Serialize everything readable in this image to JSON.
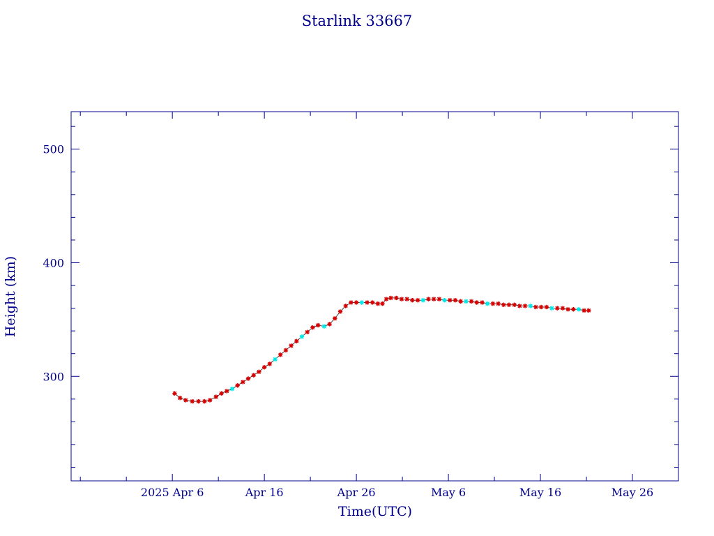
{
  "chart_data": {
    "type": "line",
    "title": "Starlink 33667",
    "xlabel": "Time(UTC)",
    "ylabel": "Height (km)",
    "xlim": [
      "2025-03-26",
      "2025-05-31"
    ],
    "ylim": [
      208,
      533
    ],
    "grid": false,
    "colors": {
      "axis": "#00008b",
      "line": "#444444",
      "marker": "#d40000",
      "marker_alt": "#00e5e5"
    },
    "x_ticks": [
      {
        "date": "2025-04-06",
        "label": "2025 Apr  6"
      },
      {
        "date": "2025-04-16",
        "label": "Apr 16"
      },
      {
        "date": "2025-04-26",
        "label": "Apr 26"
      },
      {
        "date": "2025-05-06",
        "label": "May  6"
      },
      {
        "date": "2025-05-16",
        "label": "May 16"
      },
      {
        "date": "2025-05-26",
        "label": "May 26"
      }
    ],
    "y_ticks": [
      300,
      400,
      500
    ],
    "series": [
      {
        "points": [
          {
            "date": "2025-04-06 06:00",
            "value": 285,
            "m": "r"
          },
          {
            "date": "2025-04-06 20:00",
            "value": 281,
            "m": "r"
          },
          {
            "date": "2025-04-07 11:00",
            "value": 279,
            "m": "r"
          },
          {
            "date": "2025-04-08 04:00",
            "value": 278,
            "m": "r"
          },
          {
            "date": "2025-04-08 20:00",
            "value": 278,
            "m": "r"
          },
          {
            "date": "2025-04-09 12:00",
            "value": 278,
            "m": "r"
          },
          {
            "date": "2025-04-10 02:00",
            "value": 279,
            "m": "r"
          },
          {
            "date": "2025-04-10 18:00",
            "value": 282,
            "m": "r"
          },
          {
            "date": "2025-04-11 08:00",
            "value": 285,
            "m": "r"
          },
          {
            "date": "2025-04-11 22:00",
            "value": 287,
            "m": "r"
          },
          {
            "date": "2025-04-12 12:00",
            "value": 289,
            "m": "c"
          },
          {
            "date": "2025-04-13 02:00",
            "value": 292,
            "m": "r"
          },
          {
            "date": "2025-04-13 16:00",
            "value": 295,
            "m": "r"
          },
          {
            "date": "2025-04-14 06:00",
            "value": 298,
            "m": "r"
          },
          {
            "date": "2025-04-14 20:00",
            "value": 301,
            "m": "r"
          },
          {
            "date": "2025-04-15 10:00",
            "value": 304,
            "m": "r"
          },
          {
            "date": "2025-04-16 00:00",
            "value": 308,
            "m": "r"
          },
          {
            "date": "2025-04-16 14:00",
            "value": 311,
            "m": "r"
          },
          {
            "date": "2025-04-17 04:00",
            "value": 315,
            "m": "c"
          },
          {
            "date": "2025-04-17 18:00",
            "value": 319,
            "m": "r"
          },
          {
            "date": "2025-04-18 08:00",
            "value": 323,
            "m": "r"
          },
          {
            "date": "2025-04-18 22:00",
            "value": 327,
            "m": "r"
          },
          {
            "date": "2025-04-19 12:00",
            "value": 331,
            "m": "r"
          },
          {
            "date": "2025-04-20 02:00",
            "value": 335,
            "m": "c"
          },
          {
            "date": "2025-04-20 16:00",
            "value": 339,
            "m": "r"
          },
          {
            "date": "2025-04-21 06:00",
            "value": 343,
            "m": "r"
          },
          {
            "date": "2025-04-21 20:00",
            "value": 345,
            "m": "r"
          },
          {
            "date": "2025-04-22 12:00",
            "value": 344,
            "m": "c"
          },
          {
            "date": "2025-04-23 02:00",
            "value": 346,
            "m": "r"
          },
          {
            "date": "2025-04-23 16:00",
            "value": 351,
            "m": "r"
          },
          {
            "date": "2025-04-24 06:00",
            "value": 357,
            "m": "r"
          },
          {
            "date": "2025-04-24 20:00",
            "value": 362,
            "m": "r"
          },
          {
            "date": "2025-04-25 10:00",
            "value": 365,
            "m": "r"
          },
          {
            "date": "2025-04-26 00:00",
            "value": 365,
            "m": "r"
          },
          {
            "date": "2025-04-26 14:00",
            "value": 365,
            "m": "c"
          },
          {
            "date": "2025-04-27 04:00",
            "value": 365,
            "m": "r"
          },
          {
            "date": "2025-04-27 18:00",
            "value": 365,
            "m": "r"
          },
          {
            "date": "2025-04-28 08:00",
            "value": 364,
            "m": "r"
          },
          {
            "date": "2025-04-28 20:00",
            "value": 364,
            "m": "r"
          },
          {
            "date": "2025-04-29 06:00",
            "value": 368,
            "m": "r"
          },
          {
            "date": "2025-04-29 18:00",
            "value": 369,
            "m": "r"
          },
          {
            "date": "2025-04-30 08:00",
            "value": 369,
            "m": "r"
          },
          {
            "date": "2025-04-30 22:00",
            "value": 368,
            "m": "r"
          },
          {
            "date": "2025-05-01 12:00",
            "value": 368,
            "m": "r"
          },
          {
            "date": "2025-05-02 02:00",
            "value": 367,
            "m": "r"
          },
          {
            "date": "2025-05-02 16:00",
            "value": 367,
            "m": "r"
          },
          {
            "date": "2025-05-03 06:00",
            "value": 367,
            "m": "c"
          },
          {
            "date": "2025-05-03 20:00",
            "value": 368,
            "m": "r"
          },
          {
            "date": "2025-05-04 10:00",
            "value": 368,
            "m": "r"
          },
          {
            "date": "2025-05-05 00:00",
            "value": 368,
            "m": "r"
          },
          {
            "date": "2025-05-05 14:00",
            "value": 367,
            "m": "c"
          },
          {
            "date": "2025-05-06 04:00",
            "value": 367,
            "m": "r"
          },
          {
            "date": "2025-05-06 18:00",
            "value": 367,
            "m": "r"
          },
          {
            "date": "2025-05-07 08:00",
            "value": 366,
            "m": "r"
          },
          {
            "date": "2025-05-07 22:00",
            "value": 366,
            "m": "c"
          },
          {
            "date": "2025-05-08 12:00",
            "value": 366,
            "m": "r"
          },
          {
            "date": "2025-05-09 02:00",
            "value": 365,
            "m": "r"
          },
          {
            "date": "2025-05-09 16:00",
            "value": 365,
            "m": "r"
          },
          {
            "date": "2025-05-10 06:00",
            "value": 364,
            "m": "c"
          },
          {
            "date": "2025-05-10 20:00",
            "value": 364,
            "m": "r"
          },
          {
            "date": "2025-05-11 10:00",
            "value": 364,
            "m": "r"
          },
          {
            "date": "2025-05-12 00:00",
            "value": 363,
            "m": "r"
          },
          {
            "date": "2025-05-12 14:00",
            "value": 363,
            "m": "r"
          },
          {
            "date": "2025-05-13 04:00",
            "value": 363,
            "m": "r"
          },
          {
            "date": "2025-05-13 18:00",
            "value": 362,
            "m": "r"
          },
          {
            "date": "2025-05-14 08:00",
            "value": 362,
            "m": "r"
          },
          {
            "date": "2025-05-14 22:00",
            "value": 362,
            "m": "c"
          },
          {
            "date": "2025-05-15 12:00",
            "value": 361,
            "m": "r"
          },
          {
            "date": "2025-05-16 02:00",
            "value": 361,
            "m": "r"
          },
          {
            "date": "2025-05-16 16:00",
            "value": 361,
            "m": "r"
          },
          {
            "date": "2025-05-17 06:00",
            "value": 360,
            "m": "c"
          },
          {
            "date": "2025-05-17 20:00",
            "value": 360,
            "m": "r"
          },
          {
            "date": "2025-05-18 10:00",
            "value": 360,
            "m": "r"
          },
          {
            "date": "2025-05-19 00:00",
            "value": 359,
            "m": "r"
          },
          {
            "date": "2025-05-19 14:00",
            "value": 359,
            "m": "r"
          },
          {
            "date": "2025-05-20 04:00",
            "value": 359,
            "m": "c"
          },
          {
            "date": "2025-05-20 18:00",
            "value": 358,
            "m": "r"
          },
          {
            "date": "2025-05-21 06:00",
            "value": 358,
            "m": "r"
          }
        ]
      }
    ]
  }
}
